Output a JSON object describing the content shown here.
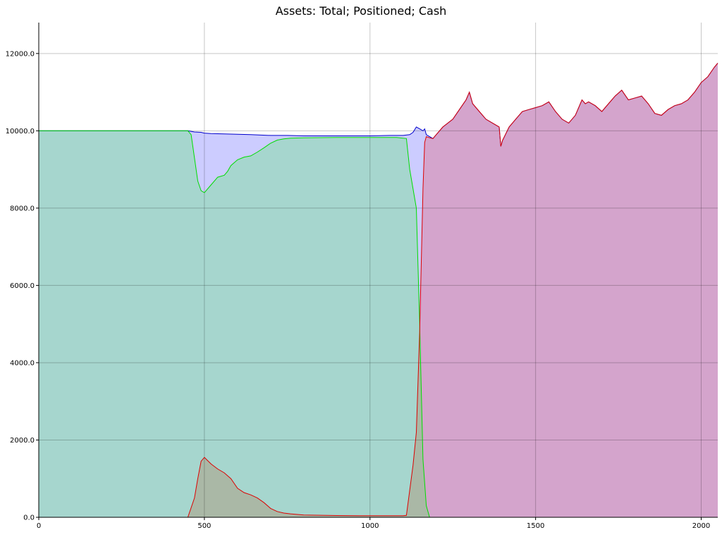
{
  "chart_data": {
    "type": "area",
    "title": "Assets: Total; Positioned; Cash",
    "xlabel": "",
    "ylabel": "",
    "xlim": [
      0,
      2050
    ],
    "ylim": [
      0,
      12800
    ],
    "grid": true,
    "legend": "none",
    "x_ticks": [
      0,
      500,
      1000,
      1500,
      2000
    ],
    "x_tick_labels": [
      "0",
      "500",
      "1000",
      "1500",
      "2000"
    ],
    "y_ticks": [
      0,
      2000,
      4000,
      6000,
      8000,
      10000,
      12000
    ],
    "y_tick_labels": [
      "0.0",
      "2000.0",
      "4000.0",
      "6000.0",
      "8000.0",
      "10000.0",
      "12000.0"
    ],
    "colors": {
      "total_line": "#0000cc",
      "total_fill": "#ccccff",
      "cash_line": "#00dd00",
      "cash_fill": "#a6d6ce",
      "positioned_line": "#dd0000",
      "positioned_fill": "#d4a4cc",
      "overlap_fill": "#aab8a6"
    },
    "series": [
      {
        "key": "total",
        "x": [
          0,
          450,
          470,
          490,
          500,
          520,
          560,
          600,
          640,
          700,
          750,
          800,
          900,
          1000,
          1060,
          1100,
          1120,
          1130,
          1140,
          1150,
          1160,
          1165,
          1170,
          1180,
          1190,
          1200,
          1220,
          1250,
          1270,
          1290,
          1300,
          1310,
          1330,
          1350,
          1370,
          1390,
          1395,
          1400,
          1420,
          1440,
          1460,
          1480,
          1500,
          1520,
          1540,
          1560,
          1580,
          1600,
          1620,
          1640,
          1650,
          1660,
          1680,
          1700,
          1720,
          1740,
          1760,
          1780,
          1800,
          1820,
          1840,
          1860,
          1880,
          1900,
          1920,
          1940,
          1960,
          1980,
          2000,
          2020,
          2040,
          2050
        ],
        "values": [
          10000,
          10000,
          9970,
          9960,
          9940,
          9930,
          9920,
          9910,
          9900,
          9880,
          9880,
          9870,
          9870,
          9870,
          9880,
          9880,
          9900,
          9960,
          10100,
          10050,
          10000,
          10050,
          9900,
          9850,
          9800,
          9900,
          10100,
          10300,
          10550,
          10800,
          11000,
          10700,
          10500,
          10300,
          10200,
          10100,
          9600,
          9750,
          10100,
          10300,
          10500,
          10550,
          10600,
          10650,
          10750,
          10500,
          10300,
          10200,
          10400,
          10800,
          10700,
          10750,
          10650,
          10500,
          10700,
          10900,
          11050,
          10800,
          10850,
          10900,
          10700,
          10450,
          10400,
          10550,
          10650,
          10700,
          10800,
          11000,
          11250,
          11400,
          11650,
          11750
        ]
      },
      {
        "key": "cash",
        "x": [
          0,
          450,
          460,
          470,
          480,
          490,
          500,
          520,
          540,
          560,
          570,
          580,
          600,
          620,
          640,
          660,
          680,
          700,
          720,
          740,
          760,
          800,
          900,
          1000,
          1060,
          1080,
          1110,
          1120,
          1130,
          1140,
          1150,
          1160,
          1170,
          1180,
          2050
        ],
        "values": [
          10000,
          10000,
          9900,
          9300,
          8700,
          8450,
          8400,
          8600,
          8800,
          8850,
          8950,
          9100,
          9250,
          9320,
          9350,
          9450,
          9560,
          9680,
          9760,
          9790,
          9810,
          9820,
          9830,
          9830,
          9830,
          9830,
          9800,
          9000,
          8500,
          8000,
          5000,
          1500,
          300,
          0,
          0
        ]
      },
      {
        "key": "positioned",
        "x": [
          0,
          450,
          470,
          480,
          490,
          500,
          520,
          540,
          560,
          580,
          600,
          620,
          640,
          660,
          680,
          700,
          720,
          740,
          760,
          800,
          900,
          1000,
          1100,
          1110,
          1120,
          1130,
          1140,
          1150,
          1160,
          1165,
          1170,
          1180,
          1190,
          1200,
          1220,
          1250,
          1270,
          1290,
          1300,
          1310,
          1330,
          1350,
          1370,
          1390,
          1395,
          1400,
          1420,
          1440,
          1460,
          1480,
          1500,
          1520,
          1540,
          1560,
          1580,
          1600,
          1620,
          1640,
          1650,
          1660,
          1680,
          1700,
          1720,
          1740,
          1760,
          1780,
          1800,
          1820,
          1840,
          1860,
          1880,
          1900,
          1920,
          1940,
          1960,
          1980,
          2000,
          2020,
          2040,
          2050
        ],
        "values": [
          0,
          0,
          500,
          1000,
          1450,
          1550,
          1380,
          1250,
          1150,
          1000,
          750,
          640,
          580,
          500,
          380,
          230,
          150,
          110,
          90,
          60,
          45,
          40,
          40,
          50,
          700,
          1350,
          2200,
          4800,
          8500,
          9700,
          9850,
          9820,
          9800,
          9900,
          10100,
          10300,
          10550,
          10800,
          11000,
          10700,
          10500,
          10300,
          10200,
          10100,
          9600,
          9750,
          10100,
          10300,
          10500,
          10550,
          10600,
          10650,
          10750,
          10500,
          10300,
          10200,
          10400,
          10800,
          10700,
          10750,
          10650,
          10500,
          10700,
          10900,
          11050,
          10800,
          10850,
          10900,
          10700,
          10450,
          10400,
          10550,
          10650,
          10700,
          10800,
          11000,
          11250,
          11400,
          11650,
          11750
        ]
      }
    ]
  }
}
